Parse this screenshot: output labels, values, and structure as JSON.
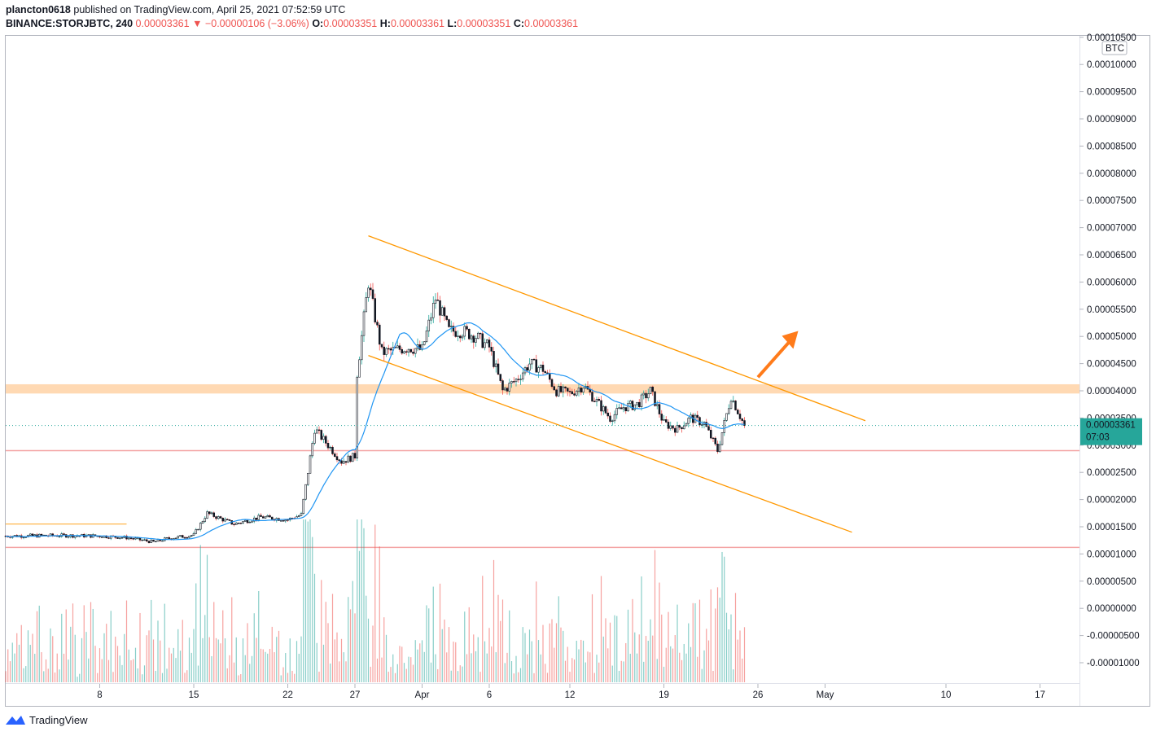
{
  "header": {
    "publisher": "plancton0618",
    "published_text": "published on TradingView.com, April 25, 2021 07:52:59 UTC",
    "symbol": "BINANCE:STORJBTC, 240",
    "last": "0.00003361",
    "change": "−0.00000106 (−3.06%)",
    "o_label": "O:",
    "o_value": "0.00003351",
    "h_label": "H:",
    "h_value": "0.00003361",
    "l_label": "L:",
    "l_value": "0.00003351",
    "c_label": "C:",
    "c_value": "0.00003361"
  },
  "colors": {
    "up": "#26a69a",
    "down": "#ef5350",
    "ma": "#2196f3",
    "trendline": "#ff9800",
    "zone": "#ffcc99",
    "support": "#f4a3a3",
    "price_tag": "#26a69a",
    "arrow": "#ff7b1a"
  },
  "price_axis": {
    "currency": "BTC",
    "ticks": [
      "0.00010500",
      "0.00010000",
      "0.00009500",
      "0.00009000",
      "0.00008500",
      "0.00008000",
      "0.00007500",
      "0.00007000",
      "0.00006500",
      "0.00006000",
      "0.00005500",
      "0.00005000",
      "0.00004500",
      "0.00004000",
      "0.00003500",
      "0.00003000",
      "0.00002500",
      "0.00002000",
      "0.00001500",
      "0.00001000",
      "0.00000500",
      "0.00000000",
      "-0.00000500",
      "-0.00001000"
    ],
    "current_price": "0.00003361",
    "countdown": "07:03"
  },
  "time_axis": {
    "ticks": [
      "8",
      "15",
      "22",
      "27",
      "Apr",
      "6",
      "12",
      "19",
      "26",
      "May",
      "10",
      "17"
    ]
  },
  "footer": {
    "brand": "TradingView"
  },
  "chart_data": {
    "type": "candlestick",
    "title": "BINANCE:STORJBTC, 240",
    "y_unit": "BTC",
    "ylim": [
      -1.05e-05,
      0.000105
    ],
    "x_range": [
      "2021-03-01",
      "2021-05-21"
    ],
    "price_path": [
      [
        "2021-03-01",
        1.33e-05
      ],
      [
        "2021-03-05",
        1.34e-05
      ],
      [
        "2021-03-08",
        1.33e-05
      ],
      [
        "2021-03-10",
        1.3e-05
      ],
      [
        "2021-03-12",
        1.22e-05
      ],
      [
        "2021-03-13",
        1.28e-05
      ],
      [
        "2021-03-15",
        1.35e-05
      ],
      [
        "2021-03-16",
        1.75e-05
      ],
      [
        "2021-03-18",
        1.55e-05
      ],
      [
        "2021-03-20",
        1.68e-05
      ],
      [
        "2021-03-22",
        1.63e-05
      ],
      [
        "2021-03-23",
        1.72e-05
      ],
      [
        "2021-03-24",
        3.3e-05
      ],
      [
        "2021-03-25",
        3e-05
      ],
      [
        "2021-03-26",
        2.7e-05
      ],
      [
        "2021-03-27",
        2.8e-05
      ],
      [
        "2021-03-27",
        4e-05
      ],
      [
        "2021-03-28",
        6e-05
      ],
      [
        "2021-03-29",
        4.7e-05
      ],
      [
        "2021-03-30",
        4.75e-05
      ],
      [
        "2021-03-31",
        4.8e-05
      ],
      [
        "2021-04-01",
        4.75e-05
      ],
      [
        "2021-04-02",
        5.7e-05
      ],
      [
        "2021-04-03",
        5.1e-05
      ],
      [
        "2021-04-04",
        5.1e-05
      ],
      [
        "2021-04-05",
        5e-05
      ],
      [
        "2021-04-06",
        4.8e-05
      ],
      [
        "2021-04-07",
        4e-05
      ],
      [
        "2021-04-08",
        4.2e-05
      ],
      [
        "2021-04-09",
        4.5e-05
      ],
      [
        "2021-04-10",
        4.4e-05
      ],
      [
        "2021-04-11",
        4e-05
      ],
      [
        "2021-04-12",
        3.95e-05
      ],
      [
        "2021-04-13",
        4.1e-05
      ],
      [
        "2021-04-14",
        3.8e-05
      ],
      [
        "2021-04-15",
        3.5e-05
      ],
      [
        "2021-04-16",
        3.7e-05
      ],
      [
        "2021-04-17",
        3.75e-05
      ],
      [
        "2021-04-18",
        4e-05
      ],
      [
        "2021-04-19",
        3.4e-05
      ],
      [
        "2021-04-20",
        3.3e-05
      ],
      [
        "2021-04-21",
        3.5e-05
      ],
      [
        "2021-04-22",
        3.4e-05
      ],
      [
        "2021-04-23",
        2.9e-05
      ],
      [
        "2021-04-24",
        3.9e-05
      ],
      [
        "2021-04-25",
        3.36e-05
      ]
    ],
    "annotations": {
      "resistance_zone": [
        3.95e-05,
        4.12e-05
      ],
      "support_line_1": 2.9e-05,
      "support_line_2": 1.12e-05,
      "short_orange_line": {
        "from": "2021-03-01",
        "to": "2021-03-10",
        "price": 1.55e-05
      },
      "channel_upper": [
        [
          "2021-03-28",
          6.85e-05
        ],
        [
          "2021-05-04",
          3.45e-05
        ]
      ],
      "channel_lower": [
        [
          "2021-03-28",
          4.65e-05
        ],
        [
          "2021-05-03",
          1.4e-05
        ]
      ],
      "arrow": {
        "from": [
          "2021-04-26",
          4.25e-05
        ],
        "to": [
          "2021-04-29",
          5.1e-05
        ]
      }
    }
  }
}
